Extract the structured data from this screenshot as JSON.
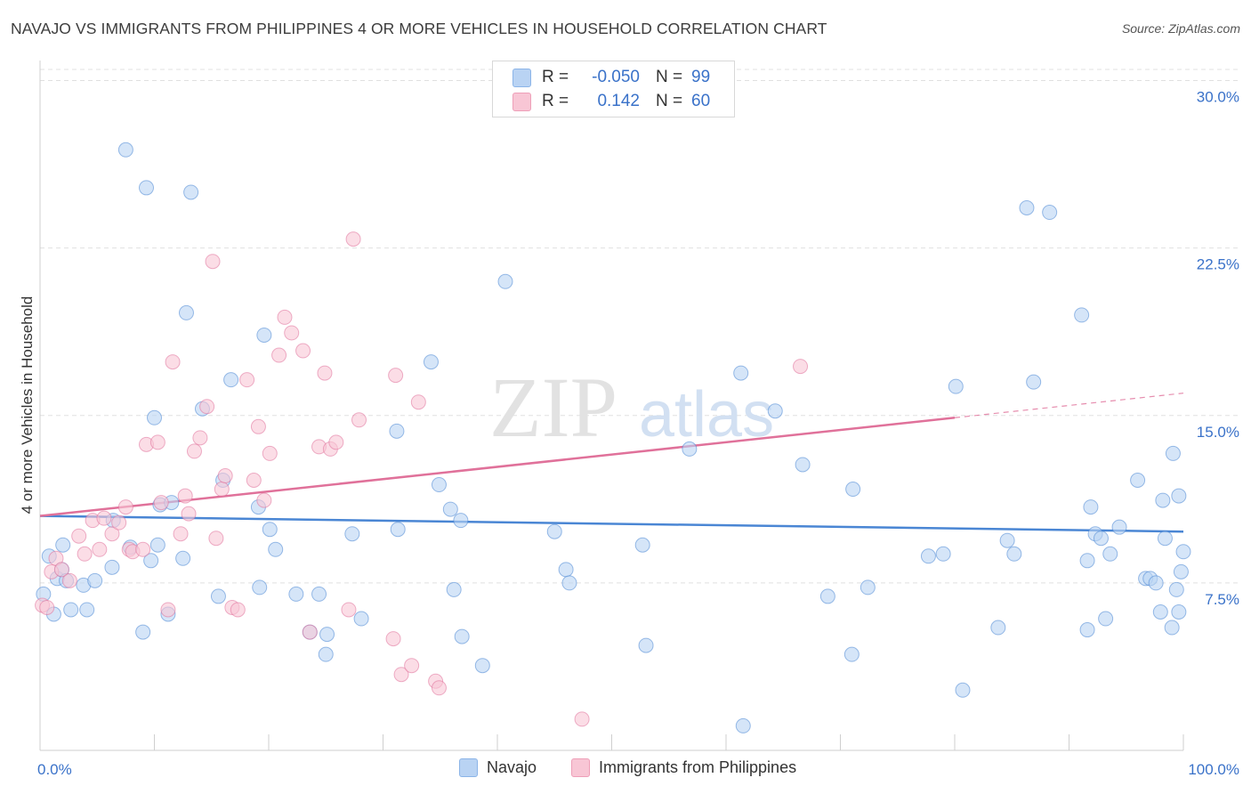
{
  "title": "NAVAJO VS IMMIGRANTS FROM PHILIPPINES 4 OR MORE VEHICLES IN HOUSEHOLD CORRELATION CHART",
  "source": "Source: ZipAtlas.com",
  "watermark": {
    "zip": "ZIP",
    "atlas": "atlas"
  },
  "legend": {
    "r_label": "R =",
    "n_label": "N =",
    "rows": [
      {
        "r": "-0.050",
        "n": "99",
        "fill": "#b9d3f3",
        "stroke": "#8bb4e8"
      },
      {
        "r": "0.142",
        "n": "60",
        "fill": "#f8c6d5",
        "stroke": "#ee9fb8"
      }
    ]
  },
  "chart_data": {
    "type": "scatter",
    "ylabel": "4 or more Vehicles in Household",
    "x_tick_labels": [
      "0.0%",
      "100.0%"
    ],
    "y_tick_labels": [
      "7.5%",
      "15.0%",
      "22.5%",
      "30.0%"
    ],
    "y_ticks": [
      7.5,
      15.0,
      22.5,
      30.0
    ],
    "xlim": [
      0,
      100
    ],
    "ylim": [
      0,
      30.5
    ],
    "grid": "horizontal-dashed",
    "legend_position": "top-center",
    "series": [
      {
        "name": "Navajo",
        "color": "#4a86d4",
        "fill": "#b9d3f3",
        "trend": {
          "x": [
            0,
            100
          ],
          "y": [
            10.5,
            9.8
          ]
        },
        "points": [
          [
            7.5,
            26.9
          ],
          [
            9.3,
            25.2
          ],
          [
            13.2,
            25.0
          ],
          [
            12.8,
            19.6
          ],
          [
            10.0,
            14.9
          ],
          [
            14.2,
            15.3
          ],
          [
            16.7,
            16.6
          ],
          [
            19.6,
            18.6
          ],
          [
            34.2,
            17.4
          ],
          [
            40.7,
            21.0
          ],
          [
            31.2,
            14.3
          ],
          [
            16.0,
            12.1
          ],
          [
            34.9,
            11.9
          ],
          [
            10.5,
            11.0
          ],
          [
            11.5,
            11.1
          ],
          [
            19.1,
            10.9
          ],
          [
            35.9,
            10.8
          ],
          [
            36.8,
            10.3
          ],
          [
            20.1,
            9.9
          ],
          [
            27.3,
            9.7
          ],
          [
            31.3,
            9.9
          ],
          [
            9.7,
            8.5
          ],
          [
            6.4,
            10.3
          ],
          [
            2.0,
            9.2
          ],
          [
            0.8,
            8.7
          ],
          [
            12.5,
            8.6
          ],
          [
            20.6,
            9.0
          ],
          [
            7.9,
            9.1
          ],
          [
            10.3,
            9.2
          ],
          [
            1.5,
            7.7
          ],
          [
            1.9,
            8.1
          ],
          [
            2.3,
            7.6
          ],
          [
            3.8,
            7.4
          ],
          [
            4.8,
            7.6
          ],
          [
            6.3,
            8.2
          ],
          [
            0.3,
            7.0
          ],
          [
            1.2,
            6.1
          ],
          [
            2.7,
            6.3
          ],
          [
            4.1,
            6.3
          ],
          [
            11.2,
            6.1
          ],
          [
            15.6,
            6.9
          ],
          [
            19.2,
            7.3
          ],
          [
            22.4,
            7.0
          ],
          [
            24.4,
            7.0
          ],
          [
            28.1,
            5.9
          ],
          [
            36.2,
            7.2
          ],
          [
            9.0,
            5.3
          ],
          [
            23.6,
            5.3
          ],
          [
            25.1,
            5.2
          ],
          [
            36.9,
            5.1
          ],
          [
            25.0,
            4.3
          ],
          [
            38.7,
            3.8
          ],
          [
            46.0,
            8.1
          ],
          [
            46.3,
            7.5
          ],
          [
            45.0,
            9.8
          ],
          [
            52.7,
            9.2
          ],
          [
            53.0,
            4.7
          ],
          [
            61.3,
            16.9
          ],
          [
            64.3,
            15.2
          ],
          [
            56.8,
            13.5
          ],
          [
            66.7,
            12.8
          ],
          [
            68.9,
            6.9
          ],
          [
            71.1,
            11.7
          ],
          [
            71.0,
            4.3
          ],
          [
            72.4,
            7.3
          ],
          [
            77.7,
            8.7
          ],
          [
            79.0,
            8.8
          ],
          [
            80.1,
            16.3
          ],
          [
            83.8,
            5.5
          ],
          [
            84.6,
            9.4
          ],
          [
            85.2,
            8.8
          ],
          [
            86.3,
            24.3
          ],
          [
            86.9,
            16.5
          ],
          [
            88.3,
            24.1
          ],
          [
            91.1,
            19.5
          ],
          [
            91.6,
            8.5
          ],
          [
            91.9,
            10.9
          ],
          [
            92.3,
            9.7
          ],
          [
            92.8,
            9.5
          ],
          [
            93.2,
            5.9
          ],
          [
            93.6,
            8.8
          ],
          [
            94.4,
            10.0
          ],
          [
            96.0,
            12.1
          ],
          [
            96.7,
            7.7
          ],
          [
            97.1,
            7.7
          ],
          [
            97.6,
            7.5
          ],
          [
            98.0,
            6.2
          ],
          [
            98.4,
            9.5
          ],
          [
            99.1,
            13.3
          ],
          [
            99.4,
            7.2
          ],
          [
            99.6,
            6.2
          ],
          [
            100.0,
            8.9
          ],
          [
            98.2,
            11.2
          ],
          [
            99.0,
            5.5
          ],
          [
            99.8,
            8.0
          ],
          [
            99.6,
            11.4
          ],
          [
            91.6,
            5.4
          ],
          [
            80.7,
            2.7
          ],
          [
            61.5,
            1.1
          ]
        ]
      },
      {
        "name": "Immigrants from Philippines",
        "color": "#e0719a",
        "fill": "#f8c6d5",
        "trend": {
          "x": [
            0,
            80
          ],
          "y": [
            10.5,
            14.9
          ]
        },
        "trend_extension": {
          "x": [
            80,
            100
          ],
          "y": [
            14.9,
            16.0
          ]
        },
        "points": [
          [
            0.2,
            6.5
          ],
          [
            0.6,
            6.4
          ],
          [
            1.0,
            8.0
          ],
          [
            1.4,
            8.6
          ],
          [
            1.9,
            8.1
          ],
          [
            2.6,
            7.6
          ],
          [
            3.4,
            9.6
          ],
          [
            3.9,
            8.8
          ],
          [
            4.6,
            10.3
          ],
          [
            5.2,
            9.0
          ],
          [
            5.6,
            10.4
          ],
          [
            6.3,
            9.7
          ],
          [
            6.9,
            10.2
          ],
          [
            7.5,
            10.9
          ],
          [
            7.8,
            9.0
          ],
          [
            8.1,
            8.9
          ],
          [
            9.0,
            9.0
          ],
          [
            9.3,
            13.7
          ],
          [
            10.3,
            13.8
          ],
          [
            10.6,
            11.1
          ],
          [
            11.2,
            6.3
          ],
          [
            11.6,
            17.4
          ],
          [
            12.3,
            9.7
          ],
          [
            12.7,
            11.4
          ],
          [
            13.0,
            10.6
          ],
          [
            13.5,
            13.4
          ],
          [
            14.0,
            14.0
          ],
          [
            14.6,
            15.4
          ],
          [
            15.1,
            21.9
          ],
          [
            15.4,
            9.5
          ],
          [
            15.9,
            11.7
          ],
          [
            16.2,
            12.3
          ],
          [
            16.8,
            6.4
          ],
          [
            17.3,
            6.3
          ],
          [
            18.1,
            16.6
          ],
          [
            18.7,
            12.1
          ],
          [
            19.1,
            14.5
          ],
          [
            19.6,
            11.2
          ],
          [
            20.1,
            13.3
          ],
          [
            20.9,
            17.7
          ],
          [
            21.4,
            19.4
          ],
          [
            22.0,
            18.7
          ],
          [
            23.0,
            17.9
          ],
          [
            23.6,
            5.3
          ],
          [
            24.4,
            13.6
          ],
          [
            24.9,
            16.9
          ],
          [
            25.4,
            13.5
          ],
          [
            25.9,
            13.8
          ],
          [
            27.0,
            6.3
          ],
          [
            27.4,
            22.9
          ],
          [
            27.9,
            14.8
          ],
          [
            30.9,
            5.0
          ],
          [
            31.1,
            16.8
          ],
          [
            31.6,
            3.4
          ],
          [
            32.5,
            3.8
          ],
          [
            33.1,
            15.6
          ],
          [
            34.6,
            3.1
          ],
          [
            34.9,
            2.8
          ],
          [
            47.4,
            1.4
          ],
          [
            66.5,
            17.2
          ]
        ]
      }
    ]
  },
  "bottom_legend": [
    "Navajo",
    "Immigrants from Philippines"
  ]
}
